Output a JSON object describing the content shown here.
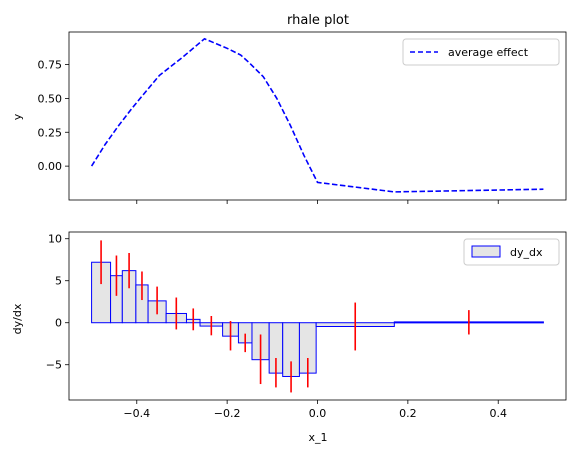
{
  "chart_data": [
    {
      "type": "line",
      "title": "rhale plot",
      "xlabel": "",
      "ylabel": "y",
      "xlim": [
        -0.55,
        0.55
      ],
      "ylim": [
        -0.25,
        0.99
      ],
      "yticks": [
        0.0,
        0.25,
        0.5,
        0.75
      ],
      "ytick_labels": [
        "0.00",
        "0.25",
        "0.50",
        "0.75"
      ],
      "xticks": [
        -0.4,
        -0.2,
        0.0,
        0.2,
        0.4
      ],
      "grid": false,
      "legend_position": "upper right",
      "series": [
        {
          "name": "average effect",
          "color": "#0000ff",
          "style": "dashed",
          "x": [
            -0.5,
            -0.47,
            -0.44,
            -0.41,
            -0.38,
            -0.35,
            -0.3,
            -0.25,
            -0.2,
            -0.17,
            -0.15,
            -0.12,
            -0.09,
            -0.06,
            -0.03,
            0.0,
            0.17,
            0.5
          ],
          "y": [
            0.0,
            0.16,
            0.3,
            0.43,
            0.55,
            0.67,
            0.8,
            0.94,
            0.87,
            0.82,
            0.76,
            0.66,
            0.5,
            0.3,
            0.08,
            -0.12,
            -0.19,
            -0.17
          ]
        }
      ]
    },
    {
      "type": "bar",
      "title": "",
      "xlabel": "x_1",
      "ylabel": "dy/dx",
      "xlim": [
        -0.55,
        0.55
      ],
      "ylim": [
        -9.2,
        10.8
      ],
      "xticks": [
        -0.4,
        -0.2,
        0.0,
        0.2,
        0.4
      ],
      "xtick_labels": [
        "−0.4",
        "−0.2",
        "0.0",
        "0.2",
        "0.4"
      ],
      "yticks": [
        -5,
        0,
        5,
        10
      ],
      "ytick_labels": [
        "−5",
        "0",
        "5",
        "10"
      ],
      "grid": false,
      "legend_position": "upper right",
      "bar_fill": "#e5e5e5",
      "bar_edge": "#0000ff",
      "errorbar_color": "#ff0000",
      "series": [
        {
          "name": "dy_dx",
          "bins": [
            {
              "x0": -0.5,
              "x1": -0.458,
              "value": 7.2,
              "err_low": 4.6,
              "err_high": 9.8
            },
            {
              "x0": -0.458,
              "x1": -0.432,
              "value": 5.6,
              "err_low": 3.2,
              "err_high": 8.0
            },
            {
              "x0": -0.432,
              "x1": -0.402,
              "value": 6.2,
              "err_low": 4.1,
              "err_high": 8.3
            },
            {
              "x0": -0.402,
              "x1": -0.375,
              "value": 4.5,
              "err_low": 2.7,
              "err_high": 6.1
            },
            {
              "x0": -0.375,
              "x1": -0.335,
              "value": 2.6,
              "err_low": 1.0,
              "err_high": 4.3
            },
            {
              "x0": -0.335,
              "x1": -0.29,
              "value": 1.1,
              "err_low": -0.8,
              "err_high": 3.0
            },
            {
              "x0": -0.29,
              "x1": -0.26,
              "value": 0.4,
              "err_low": -0.9,
              "err_high": 1.7
            },
            {
              "x0": -0.26,
              "x1": -0.21,
              "value": -0.4,
              "err_low": -1.5,
              "err_high": 0.8
            },
            {
              "x0": -0.21,
              "x1": -0.175,
              "value": -1.6,
              "err_low": -3.3,
              "err_high": 0.2
            },
            {
              "x0": -0.175,
              "x1": -0.145,
              "value": -2.4,
              "err_low": -3.5,
              "err_high": -1.3
            },
            {
              "x0": -0.145,
              "x1": -0.107,
              "value": -4.4,
              "err_low": -7.3,
              "err_high": -1.4
            },
            {
              "x0": -0.107,
              "x1": -0.077,
              "value": -6.0,
              "err_low": -7.7,
              "err_high": -4.2
            },
            {
              "x0": -0.077,
              "x1": -0.04,
              "value": -6.4,
              "err_low": -8.3,
              "err_high": -4.6
            },
            {
              "x0": -0.04,
              "x1": -0.003,
              "value": -6.0,
              "err_low": -7.7,
              "err_high": -4.2
            },
            {
              "x0": -0.003,
              "x1": 0.17,
              "value": -0.45,
              "err_low": -3.3,
              "err_high": 2.4
            },
            {
              "x0": 0.17,
              "x1": 0.5,
              "value": 0.1,
              "err_low": -1.4,
              "err_high": 1.5
            }
          ]
        }
      ]
    }
  ]
}
